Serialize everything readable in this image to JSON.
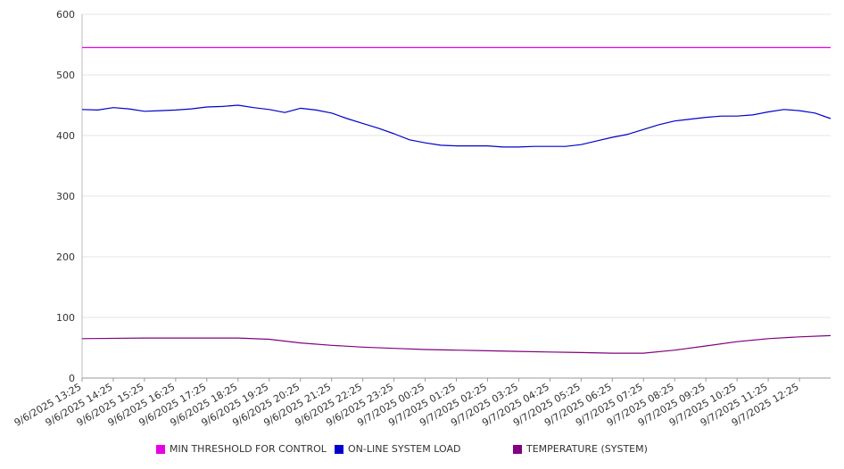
{
  "chart_data": {
    "type": "line",
    "title": "",
    "xlabel": "",
    "ylabel": "",
    "ylim": [
      0,
      600
    ],
    "yticks": [
      0,
      100,
      200,
      300,
      400,
      500,
      600
    ],
    "grid": "horizontal",
    "legend_position": "bottom",
    "x_start": "9/6/2025 13:25",
    "x_end": "9/7/2025 13:25",
    "x_ticks": [
      "9/6/2025 13:25",
      "9/6/2025 14:25",
      "9/6/2025 15:25",
      "9/6/2025 16:25",
      "9/6/2025 17:25",
      "9/6/2025 18:25",
      "9/6/2025 19:25",
      "9/6/2025 20:25",
      "9/6/2025 21:25",
      "9/6/2025 22:25",
      "9/6/2025 23:25",
      "9/7/2025 00:25",
      "9/7/2025 01:25",
      "9/7/2025 02:25",
      "9/7/2025 03:25",
      "9/7/2025 04:25",
      "9/7/2025 05:25",
      "9/7/2025 06:25",
      "9/7/2025 07:25",
      "9/7/2025 08:25",
      "9/7/2025 09:25",
      "9/7/2025 10:25",
      "9/7/2025 11:25",
      "9/7/2025 12:25"
    ],
    "series": [
      {
        "name": "MIN THRESHOLD FOR CONTROL",
        "color": "#e600e6",
        "x": [
          "9/6/2025 13:25",
          "9/7/2025 13:25"
        ],
        "values": [
          545,
          545
        ]
      },
      {
        "name": "ON-LINE SYSTEM LOAD",
        "color": "#0000cc",
        "x": [
          "9/6/2025 13:25",
          "9/6/2025 13:55",
          "9/6/2025 14:25",
          "9/6/2025 14:55",
          "9/6/2025 15:25",
          "9/6/2025 15:55",
          "9/6/2025 16:25",
          "9/6/2025 16:55",
          "9/6/2025 17:25",
          "9/6/2025 17:55",
          "9/6/2025 18:25",
          "9/6/2025 18:55",
          "9/6/2025 19:25",
          "9/6/2025 19:55",
          "9/6/2025 20:25",
          "9/6/2025 20:55",
          "9/6/2025 21:25",
          "9/6/2025 21:55",
          "9/6/2025 22:25",
          "9/6/2025 22:55",
          "9/6/2025 23:25",
          "9/6/2025 23:55",
          "9/7/2025 00:25",
          "9/7/2025 00:55",
          "9/7/2025 01:25",
          "9/7/2025 01:55",
          "9/7/2025 02:25",
          "9/7/2025 02:55",
          "9/7/2025 03:25",
          "9/7/2025 03:55",
          "9/7/2025 04:25",
          "9/7/2025 04:55",
          "9/7/2025 05:25",
          "9/7/2025 05:55",
          "9/7/2025 06:25",
          "9/7/2025 06:55",
          "9/7/2025 07:25",
          "9/7/2025 07:55",
          "9/7/2025 08:25",
          "9/7/2025 08:55",
          "9/7/2025 09:25",
          "9/7/2025 09:55",
          "9/7/2025 10:25",
          "9/7/2025 10:55",
          "9/7/2025 11:25",
          "9/7/2025 11:55",
          "9/7/2025 12:25",
          "9/7/2025 12:55",
          "9/7/2025 13:25"
        ],
        "values": [
          443,
          442,
          446,
          444,
          440,
          441,
          442,
          444,
          447,
          448,
          450,
          446,
          443,
          438,
          445,
          442,
          437,
          428,
          420,
          412,
          403,
          393,
          388,
          384,
          383,
          383,
          383,
          381,
          381,
          382,
          382,
          382,
          385,
          391,
          397,
          402,
          410,
          418,
          424,
          427,
          430,
          432,
          432,
          434,
          439,
          443,
          441,
          437,
          428
        ]
      },
      {
        "name": "TEMPERATURE (SYSTEM)",
        "color": "#800080",
        "x": [
          "9/6/2025 13:25",
          "9/6/2025 15:25",
          "9/6/2025 17:25",
          "9/6/2025 18:25",
          "9/6/2025 19:25",
          "9/6/2025 20:25",
          "9/6/2025 21:25",
          "9/6/2025 22:25",
          "9/6/2025 23:25",
          "9/7/2025 00:25",
          "9/7/2025 01:25",
          "9/7/2025 02:25",
          "9/7/2025 03:25",
          "9/7/2025 04:25",
          "9/7/2025 05:25",
          "9/7/2025 06:25",
          "9/7/2025 07:25",
          "9/7/2025 08:25",
          "9/7/2025 09:25",
          "9/7/2025 10:25",
          "9/7/2025 11:25",
          "9/7/2025 12:25",
          "9/7/2025 13:25"
        ],
        "values": [
          65,
          66,
          66,
          66,
          64,
          58,
          54,
          51,
          49,
          47,
          46,
          45,
          44,
          43,
          42,
          41,
          41,
          46,
          53,
          60,
          65,
          68,
          70
        ]
      }
    ]
  }
}
